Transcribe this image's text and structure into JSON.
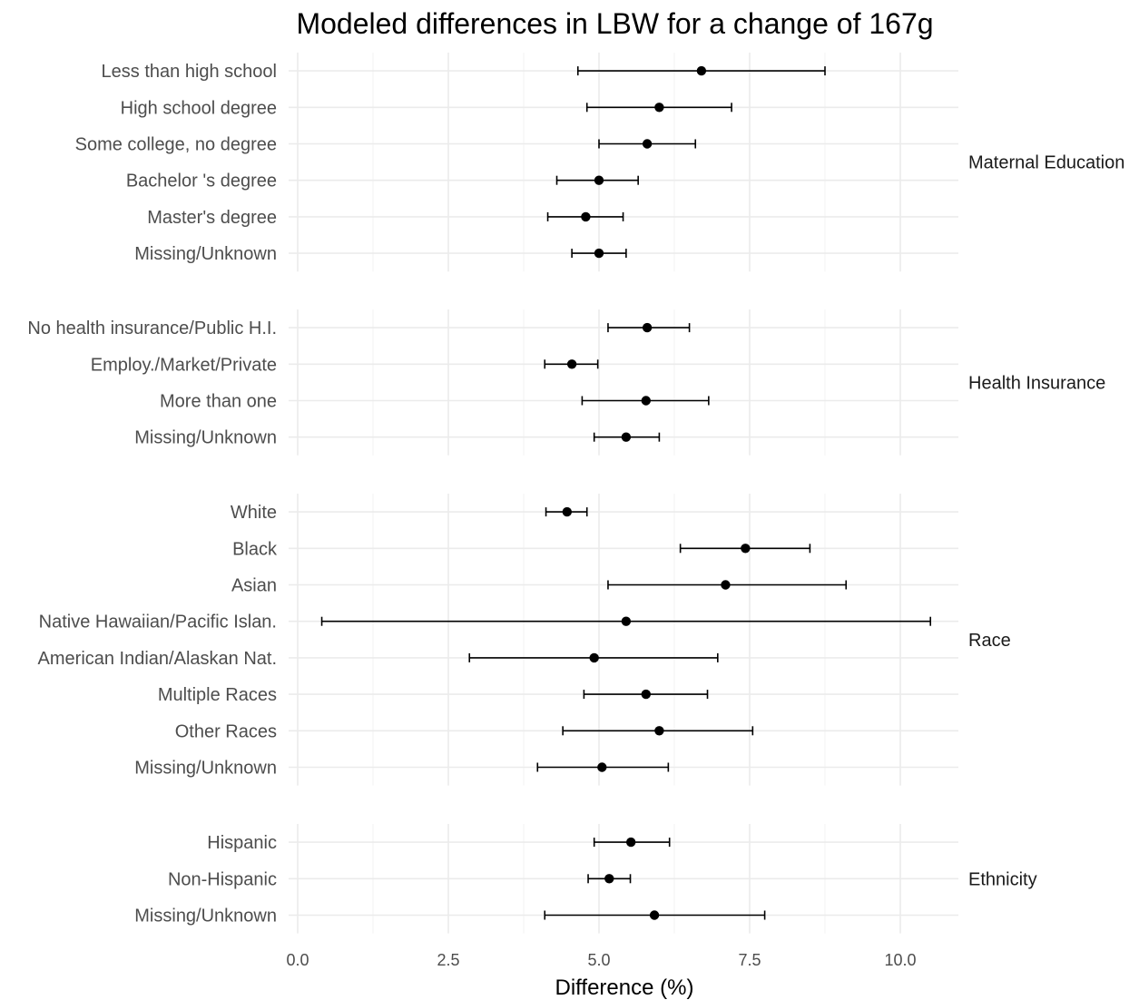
{
  "chart_data": {
    "type": "forest",
    "title": "Modeled differences in LBW for a change of 167g",
    "xlabel": "Difference (%)",
    "ylabel": "",
    "xlim": [
      -0.2,
      11.0
    ],
    "x_ticks": [
      0.0,
      2.5,
      5.0,
      7.5,
      10.0
    ],
    "x_tick_labels": [
      "0.0",
      "2.5",
      "5.0",
      "7.5",
      "10.0"
    ],
    "grid": true,
    "panels": [
      {
        "name": "Maternal Education",
        "rows": [
          {
            "label": "Less than high school",
            "estimate": 6.7,
            "lower": 4.65,
            "upper": 8.75
          },
          {
            "label": "High school degree",
            "estimate": 6.0,
            "lower": 4.8,
            "upper": 7.2
          },
          {
            "label": "Some college, no degree",
            "estimate": 5.8,
            "lower": 5.0,
            "upper": 6.6
          },
          {
            "label": "Bachelor 's degree",
            "estimate": 5.0,
            "lower": 4.3,
            "upper": 5.65
          },
          {
            "label": "Master's degree",
            "estimate": 4.78,
            "lower": 4.15,
            "upper": 5.4
          },
          {
            "label": "Missing/Unknown",
            "estimate": 5.0,
            "lower": 4.55,
            "upper": 5.45
          }
        ]
      },
      {
        "name": "Health Insurance",
        "rows": [
          {
            "label": "No health insurance/Public H.I.",
            "estimate": 5.8,
            "lower": 5.15,
            "upper": 6.5
          },
          {
            "label": "Employ./Market/Private",
            "estimate": 4.55,
            "lower": 4.1,
            "upper": 4.98
          },
          {
            "label": "More than one",
            "estimate": 5.78,
            "lower": 4.72,
            "upper": 6.82
          },
          {
            "label": "Missing/Unknown",
            "estimate": 5.45,
            "lower": 4.92,
            "upper": 6.0
          }
        ]
      },
      {
        "name": "Race",
        "rows": [
          {
            "label": "White",
            "estimate": 4.47,
            "lower": 4.12,
            "upper": 4.8
          },
          {
            "label": "Black",
            "estimate": 7.43,
            "lower": 6.35,
            "upper": 8.5
          },
          {
            "label": "Asian",
            "estimate": 7.1,
            "lower": 5.15,
            "upper": 9.1
          },
          {
            "label": "Native Hawaiian/Pacific Islan.",
            "estimate": 5.45,
            "lower": 0.4,
            "upper": 10.5
          },
          {
            "label": "American Indian/Alaskan Nat.",
            "estimate": 4.92,
            "lower": 2.85,
            "upper": 6.97
          },
          {
            "label": "Multiple Races",
            "estimate": 5.78,
            "lower": 4.75,
            "upper": 6.8
          },
          {
            "label": "Other Races",
            "estimate": 6.0,
            "lower": 4.4,
            "upper": 7.55
          },
          {
            "label": "Missing/Unknown",
            "estimate": 5.05,
            "lower": 3.98,
            "upper": 6.15
          }
        ]
      },
      {
        "name": "Ethnicity",
        "rows": [
          {
            "label": "Hispanic",
            "estimate": 5.53,
            "lower": 4.92,
            "upper": 6.17
          },
          {
            "label": "Non-Hispanic",
            "estimate": 5.17,
            "lower": 4.82,
            "upper": 5.52
          },
          {
            "label": "Missing/Unknown",
            "estimate": 5.92,
            "lower": 4.1,
            "upper": 7.75
          }
        ]
      }
    ]
  }
}
